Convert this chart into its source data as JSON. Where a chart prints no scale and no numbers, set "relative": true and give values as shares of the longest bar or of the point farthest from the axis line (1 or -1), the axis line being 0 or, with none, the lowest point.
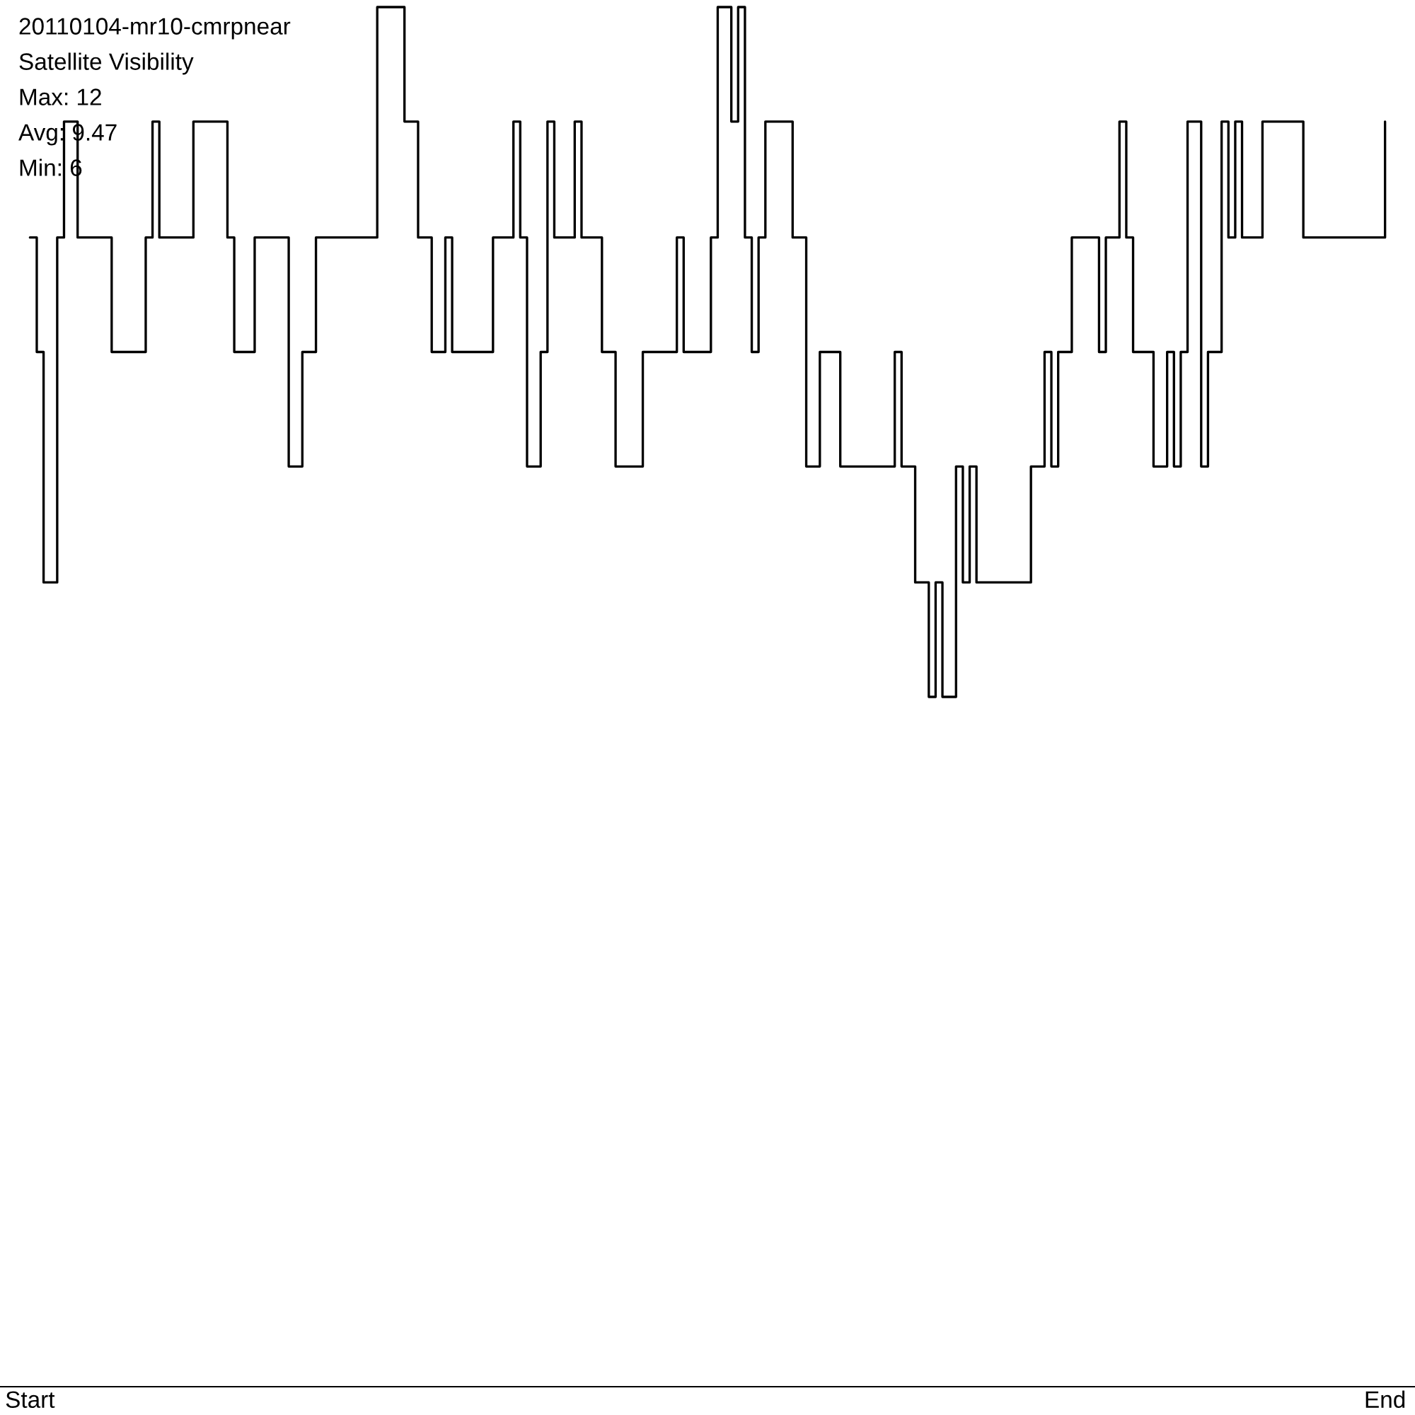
{
  "chart_data": {
    "type": "step",
    "title": "20110104-mr10-cmrpnear",
    "subtitle": "Satellite Visibility",
    "annotations": [
      "Max: 12",
      "Avg: 9.47",
      "Min: 6"
    ],
    "relative": true,
    "tick_labels": "x",
    "color": "#000000",
    "categories": [
      "Start",
      null,
      null,
      null,
      null,
      null,
      null,
      null,
      null,
      null,
      null,
      null,
      null,
      null,
      null,
      null,
      null,
      null,
      null,
      null,
      null,
      null,
      null,
      null,
      null,
      null,
      null,
      null,
      null,
      null,
      null,
      null,
      null,
      null,
      null,
      null,
      null,
      null,
      null,
      null,
      null,
      null,
      null,
      null,
      null,
      null,
      null,
      null,
      null,
      null,
      null,
      null,
      null,
      null,
      null,
      null,
      null,
      null,
      null,
      null,
      null,
      null,
      null,
      null,
      null,
      null,
      null,
      null,
      null,
      null,
      null,
      null,
      null,
      null,
      null,
      null,
      null,
      null,
      null,
      null,
      null,
      null,
      null,
      null,
      null,
      null,
      null,
      null,
      null,
      null,
      null,
      null,
      null,
      null,
      null,
      null,
      null,
      null,
      null,
      null,
      null,
      null,
      null,
      null,
      null,
      null,
      null,
      null,
      null,
      null,
      null,
      null,
      null,
      null,
      null,
      null,
      null,
      null,
      null,
      null,
      null,
      null,
      null,
      null,
      null,
      null,
      null,
      null,
      null,
      null,
      null,
      null,
      null,
      null,
      null,
      null,
      null,
      null,
      null,
      null,
      null,
      null,
      null,
      null,
      null,
      null,
      null,
      null,
      null,
      null,
      null,
      null,
      null,
      null,
      null,
      null,
      null,
      null,
      null,
      null,
      null,
      null,
      null,
      null,
      null,
      null,
      null,
      null,
      null,
      null,
      null,
      null,
      null,
      null,
      null,
      null,
      null,
      null,
      null,
      null,
      null,
      null,
      null,
      null,
      null,
      null,
      null,
      null,
      null,
      null,
      null,
      null,
      null,
      null,
      null,
      null,
      null,
      null,
      null,
      "End"
    ],
    "values": [
      0.833,
      0.75,
      0.583,
      0.583,
      0.833,
      0.917,
      0.917,
      0.833,
      0.833,
      0.833,
      0.833,
      0.833,
      0.75,
      0.75,
      0.75,
      0.75,
      0.75,
      0.833,
      0.917,
      0.833,
      0.833,
      0.833,
      0.833,
      0.833,
      0.917,
      0.917,
      0.917,
      0.917,
      0.917,
      0.833,
      0.75,
      0.75,
      0.75,
      0.833,
      0.833,
      0.833,
      0.833,
      0.833,
      0.667,
      0.667,
      0.75,
      0.75,
      0.833,
      0.833,
      0.833,
      0.833,
      0.833,
      0.833,
      0.833,
      0.833,
      0.833,
      1,
      1,
      1,
      1,
      0.917,
      0.917,
      0.833,
      0.833,
      0.75,
      0.75,
      0.833,
      0.75,
      0.75,
      0.75,
      0.75,
      0.75,
      0.75,
      0.833,
      0.833,
      0.833,
      0.917,
      0.833,
      0.667,
      0.667,
      0.75,
      0.917,
      0.833,
      0.833,
      0.833,
      0.917,
      0.833,
      0.833,
      0.833,
      0.75,
      0.75,
      0.667,
      0.667,
      0.667,
      0.667,
      0.75,
      0.75,
      0.75,
      0.75,
      0.75,
      0.833,
      0.75,
      0.75,
      0.75,
      0.75,
      0.833,
      1,
      1,
      0.917,
      1,
      0.833,
      0.75,
      0.833,
      0.917,
      0.917,
      0.917,
      0.917,
      0.833,
      0.833,
      0.667,
      0.667,
      0.75,
      0.75,
      0.75,
      0.667,
      0.667,
      0.667,
      0.667,
      0.667,
      0.667,
      0.667,
      0.667,
      0.75,
      0.667,
      0.667,
      0.583,
      0.583,
      0.5,
      0.583,
      0.5,
      0.5,
      0.667,
      0.583,
      0.667,
      0.583,
      0.583,
      0.583,
      0.583,
      0.583,
      0.583,
      0.583,
      0.583,
      0.667,
      0.667,
      0.75,
      0.667,
      0.75,
      0.75,
      0.833,
      0.833,
      0.833,
      0.833,
      0.75,
      0.833,
      0.833,
      0.917,
      0.833,
      0.75,
      0.75,
      0.75,
      0.667,
      0.667,
      0.75,
      0.667,
      0.75,
      0.917,
      0.917,
      0.667,
      0.75,
      0.75,
      0.917,
      0.833,
      0.917,
      0.833,
      0.833,
      0.833,
      0.917,
      0.917,
      0.917,
      0.917,
      0.917,
      0.917,
      0.833,
      0.833,
      0.833,
      0.833,
      0.833,
      0.833,
      0.833,
      0.833,
      0.833,
      0.833,
      0.833,
      0.833,
      0.917
    ]
  }
}
